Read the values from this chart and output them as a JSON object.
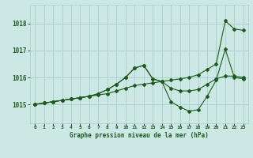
{
  "xlabel": "Graphe pression niveau de la mer (hPa)",
  "xlim": [
    -0.5,
    23.5
  ],
  "ylim": [
    1014.3,
    1018.7
  ],
  "yticks": [
    1015,
    1016,
    1017,
    1018
  ],
  "xticks": [
    0,
    1,
    2,
    3,
    4,
    5,
    6,
    7,
    8,
    9,
    10,
    11,
    12,
    13,
    14,
    15,
    16,
    17,
    18,
    19,
    20,
    21,
    22,
    23
  ],
  "bg_color": "#cce8e4",
  "grid_color": "#aacccc",
  "line_color": "#1a5c1a",
  "series1_x": [
    0,
    1,
    2,
    3,
    4,
    5,
    6,
    7,
    8,
    9,
    10,
    11,
    12,
    13,
    14,
    15,
    16,
    17,
    18,
    19,
    20,
    21,
    22,
    23
  ],
  "series1_y": [
    1015.0,
    1015.05,
    1015.1,
    1015.15,
    1015.2,
    1015.25,
    1015.3,
    1015.35,
    1015.4,
    1015.5,
    1015.6,
    1015.7,
    1015.75,
    1015.8,
    1015.85,
    1015.9,
    1015.95,
    1016.0,
    1016.1,
    1016.3,
    1016.5,
    1018.1,
    1017.8,
    1017.75
  ],
  "series2_x": [
    0,
    1,
    2,
    3,
    4,
    5,
    6,
    7,
    8,
    9,
    10,
    11,
    12,
    13,
    14,
    15,
    16,
    17,
    18,
    19,
    20,
    21,
    22,
    23
  ],
  "series2_y": [
    1015.0,
    1015.05,
    1015.1,
    1015.15,
    1015.2,
    1015.25,
    1015.3,
    1015.4,
    1015.55,
    1015.75,
    1016.0,
    1016.35,
    1016.45,
    1015.95,
    1015.85,
    1015.6,
    1015.5,
    1015.5,
    1015.55,
    1015.75,
    1015.95,
    1016.05,
    1016.05,
    1016.0
  ],
  "series3_x": [
    0,
    1,
    2,
    3,
    4,
    5,
    6,
    7,
    8,
    9,
    10,
    11,
    12,
    13,
    14,
    15,
    16,
    17,
    18,
    19,
    20,
    21,
    22,
    23
  ],
  "series3_y": [
    1015.0,
    1015.05,
    1015.1,
    1015.15,
    1015.2,
    1015.25,
    1015.3,
    1015.4,
    1015.55,
    1015.75,
    1016.0,
    1016.35,
    1016.45,
    1015.95,
    1015.85,
    1015.1,
    1014.9,
    1014.75,
    1014.8,
    1015.3,
    1015.9,
    1017.05,
    1016.0,
    1015.95
  ]
}
